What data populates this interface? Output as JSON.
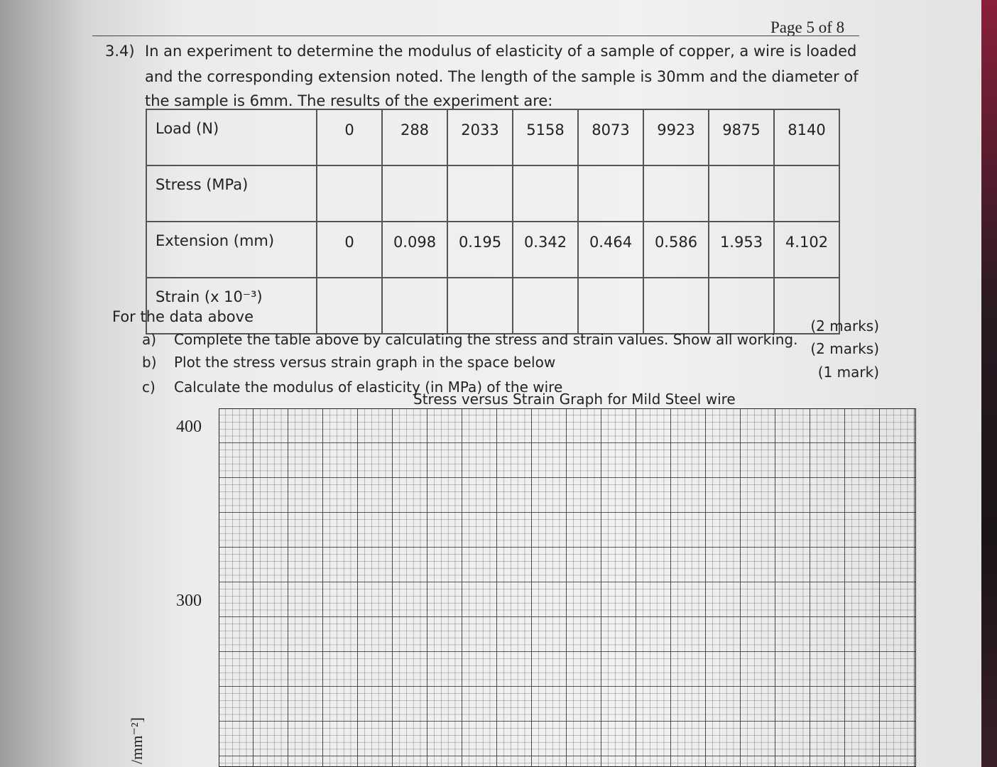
{
  "header": {
    "page": "Page 5 of 8"
  },
  "question": {
    "number": "3.4)",
    "lines": [
      "In an experiment to determine the modulus of elasticity of a sample of copper, a wire is loaded",
      "and the corresponding extension noted. The length of the sample is 30mm and the diameter of",
      "the sample is 6mm. The results of the experiment are:"
    ]
  },
  "table": {
    "rows": [
      {
        "label": "Load (N)",
        "cells": [
          "0",
          "288",
          "2033",
          "5158",
          "8073",
          "9923",
          "9875",
          "8140"
        ]
      },
      {
        "label": "Stress (MPa)"
      },
      {
        "label": "Extension (mm)",
        "cells": [
          "0",
          "0.098",
          "0.195",
          "0.342",
          "0.464",
          "0.586",
          "1.953",
          "4.102"
        ]
      },
      {
        "label": "Strain (x 10⁻³)"
      }
    ]
  },
  "tasks": {
    "intro": "For the data above",
    "items": [
      {
        "letter": "a)",
        "text": "Complete the table above by calculating the stress and strain values. Show all working.",
        "marks": "(2 marks)"
      },
      {
        "letter": "b)",
        "text": "Plot the stress versus strain graph in the space below",
        "marks": "(2 marks)"
      },
      {
        "letter": "c)",
        "text": "Calculate the modulus of elasticity (in MPa) of the wire",
        "marks": "(1 mark)"
      }
    ]
  },
  "graph": {
    "title": "Stress versus Strain Graph for Mild Steel wire",
    "yticks": [
      "400",
      "300"
    ],
    "ylabel": "/mm⁻²]"
  }
}
